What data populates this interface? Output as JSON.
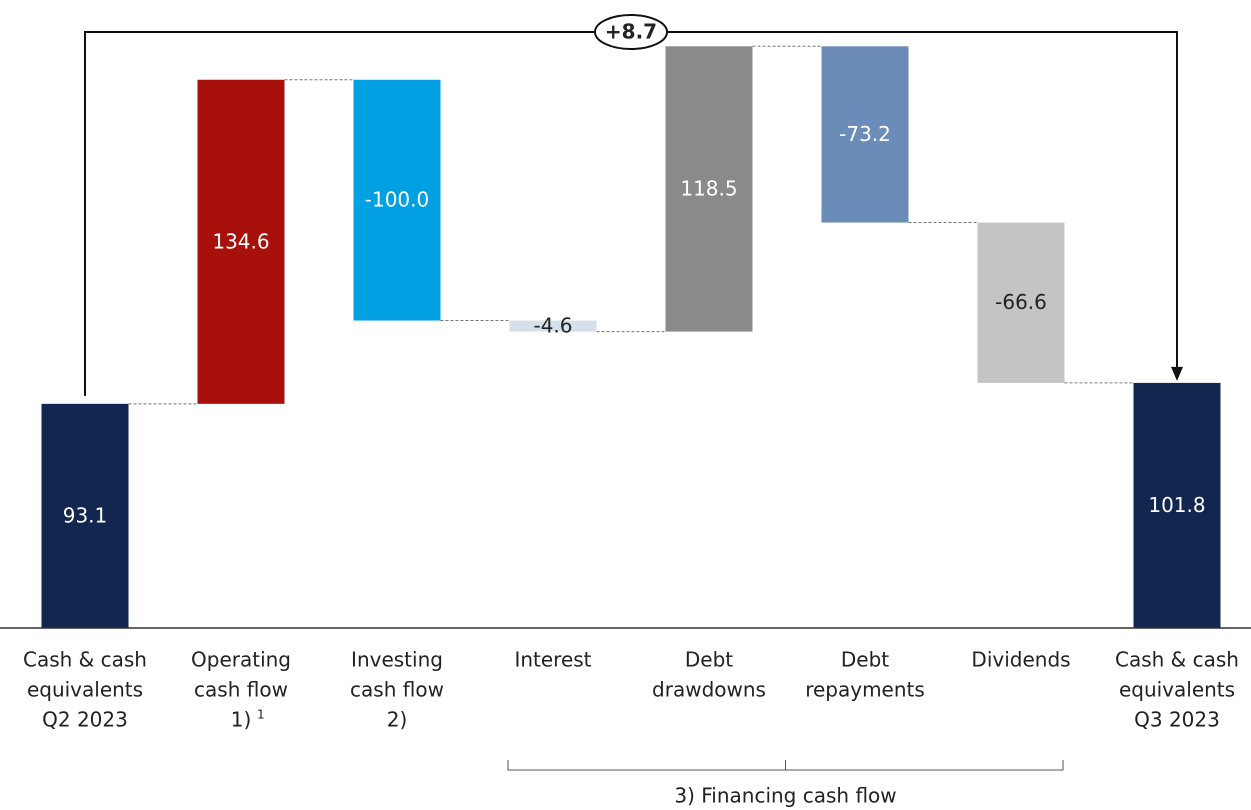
{
  "chart_data": {
    "type": "waterfall",
    "categories": [
      [
        "Cash & cash",
        "equivalents",
        "Q2 2023"
      ],
      [
        "Operating",
        "cash flow",
        "1)"
      ],
      [
        "Investing",
        "cash flow",
        "2)"
      ],
      [
        "Interest"
      ],
      [
        "Debt",
        "drawdowns"
      ],
      [
        "Debt",
        "repayments"
      ],
      [
        "Dividends"
      ],
      [
        "Cash & cash",
        "equivalents",
        "Q3 2023"
      ]
    ],
    "superscripts": [
      null,
      "1",
      null,
      null,
      null,
      null,
      null,
      null
    ],
    "values": [
      93.1,
      134.6,
      -100.0,
      -4.6,
      118.5,
      -73.2,
      -66.6,
      101.8
    ],
    "value_labels": [
      "93.1",
      "134.6",
      "-100.0",
      "-4.6",
      "118.5",
      "-73.2",
      "-66.6",
      "101.8"
    ],
    "measure": [
      "total",
      "relative",
      "relative",
      "relative",
      "relative",
      "relative",
      "relative",
      "total"
    ],
    "colors": [
      "#12264f",
      "#a8100b",
      "#00a0e2",
      "#d6e0ea",
      "#8a8a88",
      "#6b8cb8",
      "#c4c4c4",
      "#12264f"
    ],
    "label_colors": [
      "#ffffff",
      "#ffffff",
      "#ffffff",
      "#222222",
      "#ffffff",
      "#ffffff",
      "#222222",
      "#ffffff"
    ],
    "ylim": [
      0,
      260
    ],
    "change_annotation": "+8.7",
    "bracket_label": "3) Financing cash flow"
  }
}
